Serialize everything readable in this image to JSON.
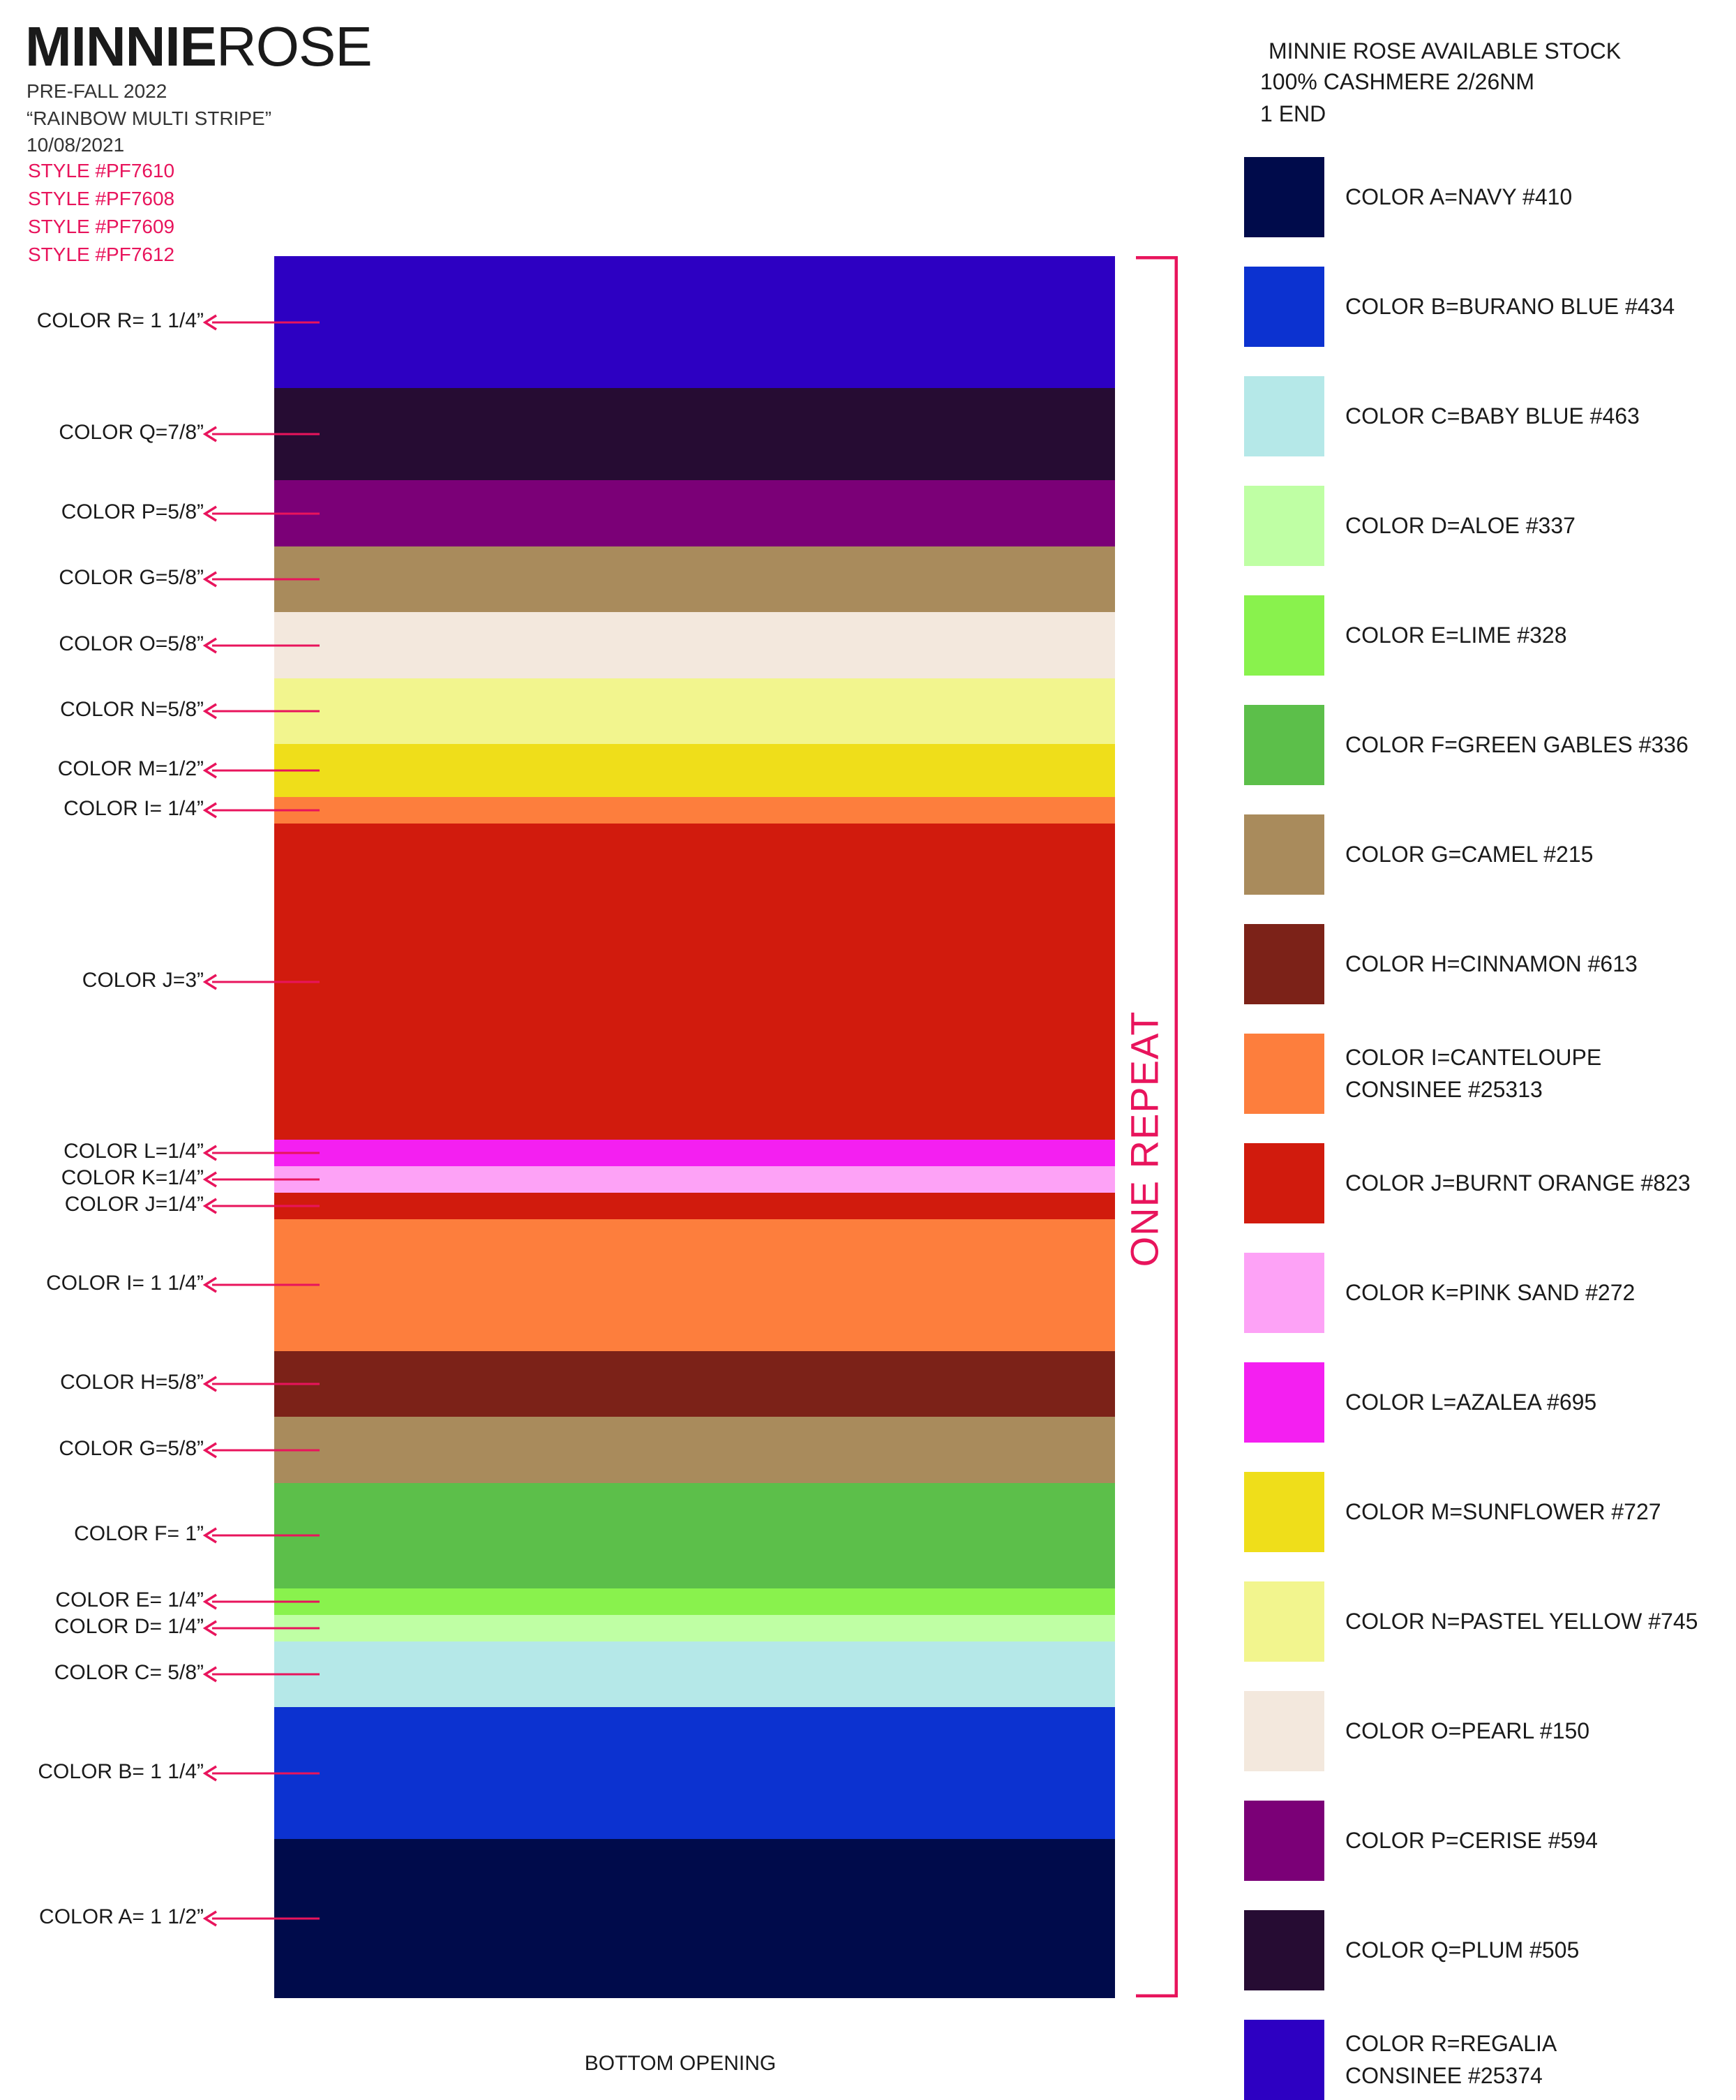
{
  "brand": {
    "bold": "MINNIE",
    "light": "ROSE"
  },
  "header_lines": [
    "PRE-FALL 2022",
    "“RAINBOW MULTI STRIPE”",
    "10/08/2021"
  ],
  "style_numbers": [
    "STYLE #PF7610",
    "STYLE #PF7608",
    "STYLE #PF7609",
    "STYLE #PF7612"
  ],
  "accent_color": "#e8145c",
  "stripes": [
    {
      "label": "COLOR R= 1 1/4”",
      "color": "#2d00c2"
    },
    {
      "label": "COLOR Q=7/8”",
      "color": "#260c33"
    },
    {
      "label": "COLOR P=5/8”",
      "color": "#7b0077"
    },
    {
      "label": "COLOR G=5/8”",
      "color": "#a98b5c"
    },
    {
      "label": "COLOR O=5/8”",
      "color": "#f3e8dd"
    },
    {
      "label": "COLOR N=5/8”",
      "color": "#f2f58e"
    },
    {
      "label": "COLOR M=1/2”",
      "color": "#efde1a"
    },
    {
      "label": "COLOR I= 1/4”",
      "color": "#fd7e3d"
    },
    {
      "label": "COLOR J=3”",
      "color": "#d11b0d"
    },
    {
      "label": "COLOR L=1/4”",
      "color": "#f41ff1"
    },
    {
      "label": "COLOR K=1/4”",
      "color": "#fda2f6"
    },
    {
      "label": "COLOR J=1/4”",
      "color": "#d11b0d"
    },
    {
      "label": "COLOR I= 1 1/4”",
      "color": "#fd7e3d"
    },
    {
      "label": "COLOR H=5/8”",
      "color": "#7c2218"
    },
    {
      "label": "COLOR G=5/8”",
      "color": "#a98b5c"
    },
    {
      "label": "COLOR F= 1”",
      "color": "#5cbf4a"
    },
    {
      "label": "COLOR E= 1/4”",
      "color": "#89f24d"
    },
    {
      "label": "COLOR D= 1/4”",
      "color": "#bfffa4"
    },
    {
      "label": "COLOR C= 5/8”",
      "color": "#b5e8e8"
    },
    {
      "label": "COLOR B= 1 1/4”",
      "color": "#0c32d0"
    },
    {
      "label": "COLOR A= 1 1/2”",
      "color": "#000b4b"
    }
  ],
  "repeat_label": "ONE REPEAT",
  "bottom_label": "BOTTOM OPENING",
  "stock_header": [
    "MINNIE ROSE AVAILABLE STOCK",
    "100% CASHMERE 2/26NM",
    "1 END"
  ],
  "stock": [
    {
      "lines": [
        "COLOR A=NAVY #410"
      ],
      "color": "#000b4b"
    },
    {
      "lines": [
        "COLOR B=BURANO BLUE #434"
      ],
      "color": "#0c32d0"
    },
    {
      "lines": [
        "COLOR C=BABY BLUE #463"
      ],
      "color": "#b5e8e8"
    },
    {
      "lines": [
        "COLOR D=ALOE #337"
      ],
      "color": "#bfffa4"
    },
    {
      "lines": [
        "COLOR E=LIME #328"
      ],
      "color": "#89f24d"
    },
    {
      "lines": [
        "COLOR F=GREEN GABLES #336"
      ],
      "color": "#5cbf4a"
    },
    {
      "lines": [
        "COLOR G=CAMEL #215"
      ],
      "color": "#a98b5c"
    },
    {
      "lines": [
        "COLOR H=CINNAMON #613"
      ],
      "color": "#7c2218"
    },
    {
      "lines": [
        "COLOR I=CANTELOUPE",
        "CONSINEE #25313"
      ],
      "color": "#fd7e3d"
    },
    {
      "lines": [
        "COLOR J=BURNT ORANGE #823"
      ],
      "color": "#d11b0d"
    },
    {
      "lines": [
        "COLOR K=PINK SAND #272"
      ],
      "color": "#fda2f6"
    },
    {
      "lines": [
        "COLOR L=AZALEA #695"
      ],
      "color": "#f41ff1"
    },
    {
      "lines": [
        "COLOR M=SUNFLOWER #727"
      ],
      "color": "#efde1a"
    },
    {
      "lines": [
        "COLOR N=PASTEL YELLOW #745"
      ],
      "color": "#f2f58e"
    },
    {
      "lines": [
        "COLOR O=PEARL #150"
      ],
      "color": "#f3e8dd"
    },
    {
      "lines": [
        "COLOR P=CERISE #594"
      ],
      "color": "#7b0077"
    },
    {
      "lines": [
        "COLOR Q=PLUM #505"
      ],
      "color": "#260c33"
    },
    {
      "lines": [
        "COLOR R=REGALIA",
        " CONSINEE #25374"
      ],
      "color": "#2d00c2"
    }
  ]
}
